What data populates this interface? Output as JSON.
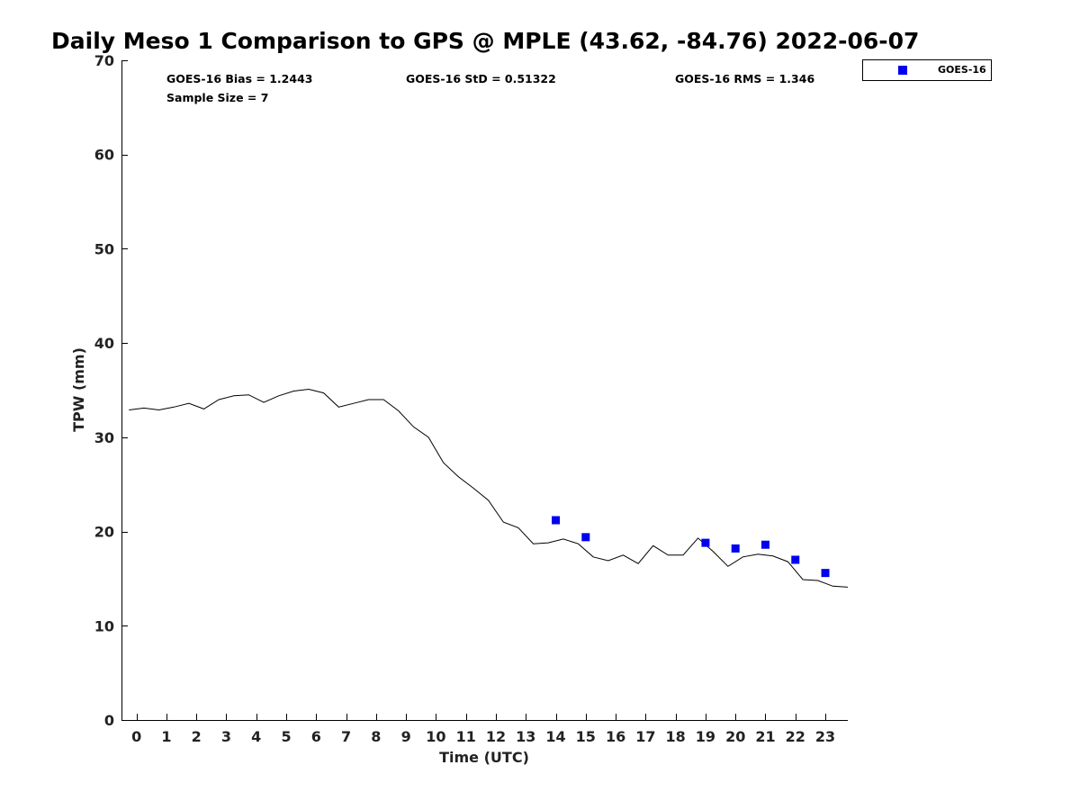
{
  "chart_data": {
    "type": "scatter",
    "title": "Daily Meso 1 Comparison to GPS @ MPLE (43.62, -84.76) 2022-06-07",
    "xlabel": "Time (UTC)",
    "ylabel": "TPW (mm)",
    "xlim": [
      -0.5,
      23.75
    ],
    "ylim": [
      0,
      70
    ],
    "x_ticks": [
      0,
      1,
      2,
      3,
      4,
      5,
      6,
      7,
      8,
      9,
      10,
      11,
      12,
      13,
      14,
      15,
      16,
      17,
      18,
      19,
      20,
      21,
      22,
      23
    ],
    "y_ticks": [
      0,
      10,
      20,
      30,
      40,
      50,
      60,
      70
    ],
    "grid": false,
    "legend_position": "top-right",
    "stats": {
      "bias": "GOES-16 Bias = 1.2443",
      "std": "GOES-16 StD = 0.51322",
      "rms": "GOES-16 RMS = 1.346",
      "sample": "Sample Size = 7"
    },
    "series": [
      {
        "type": "line",
        "color": "#000000",
        "x": [
          -0.25,
          0.25,
          0.75,
          1.25,
          1.75,
          2.25,
          2.75,
          3.25,
          3.75,
          4.25,
          4.75,
          5.25,
          5.75,
          6.25,
          6.75,
          7.25,
          7.75,
          8.25,
          8.75,
          9.25,
          9.75,
          10.25,
          10.75,
          11.25,
          11.75,
          12.25,
          12.75,
          13.25,
          13.75,
          14.25,
          14.75,
          15.25,
          15.75,
          16.25,
          16.75,
          17.25,
          17.75,
          18.25,
          18.75,
          19.25,
          19.75,
          20.25,
          20.75,
          21.25,
          21.75,
          22.25,
          22.75,
          23.25,
          23.75
        ],
        "y": [
          32.9,
          33.1,
          32.9,
          33.2,
          33.6,
          33.0,
          34.0,
          34.4,
          34.5,
          33.7,
          34.4,
          34.9,
          35.1,
          34.7,
          33.2,
          33.6,
          34.0,
          34.0,
          32.8,
          31.1,
          30.0,
          27.3,
          25.8,
          24.6,
          23.3,
          21.0,
          20.4,
          18.7,
          18.8,
          19.2,
          18.7,
          17.3,
          16.9,
          17.5,
          16.6,
          18.5,
          17.5,
          17.5,
          19.3,
          17.9,
          16.3,
          17.3,
          17.6,
          17.4,
          16.8,
          14.9,
          14.8,
          14.2,
          14.1
        ]
      },
      {
        "type": "scatter",
        "name": "GOES-16",
        "color": "#0000ee",
        "x": [
          14,
          15,
          19,
          20,
          21,
          22,
          23
        ],
        "y": [
          21.2,
          19.4,
          18.8,
          18.2,
          18.6,
          17.0,
          15.6
        ]
      }
    ]
  }
}
